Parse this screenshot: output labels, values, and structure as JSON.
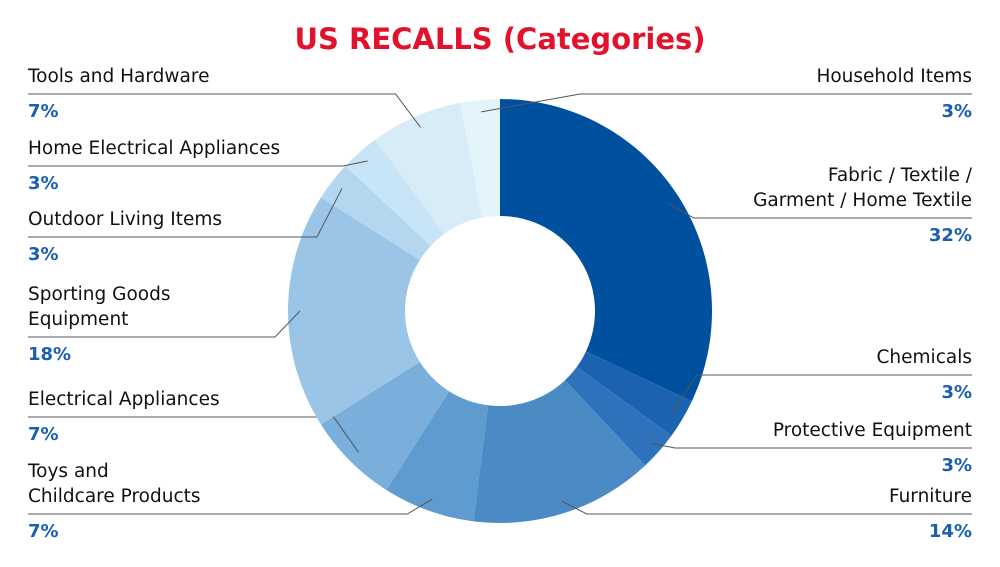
{
  "chart_data": {
    "type": "donut",
    "title": "US RECALLS (Categories)",
    "categories": [
      "Fabric / Textile /\nGarment / Home Textile",
      "Chemicals",
      "Protective Equipment",
      "Furniture",
      "Toys and\nChildcare Products",
      "Electrical Appliances",
      "Sporting Goods\nEquipment",
      "Outdoor Living Items",
      "Home Electrical Appliances",
      "Tools and Hardware",
      "Household Items"
    ],
    "values": [
      32,
      3,
      3,
      14,
      7,
      7,
      18,
      3,
      3,
      7,
      3
    ],
    "value_labels": [
      "32%",
      "3%",
      "3%",
      "14%",
      "7%",
      "7%",
      "18%",
      "3%",
      "3%",
      "7%",
      "3%"
    ],
    "colors": [
      "#0050a0",
      "#1b63b1",
      "#2e72bb",
      "#4a8bc6",
      "#5e9bd0",
      "#7aaedb",
      "#9bc5e6",
      "#b4d6ef",
      "#c8e5f8",
      "#d8ecf8",
      "#e3f5fa"
    ]
  }
}
